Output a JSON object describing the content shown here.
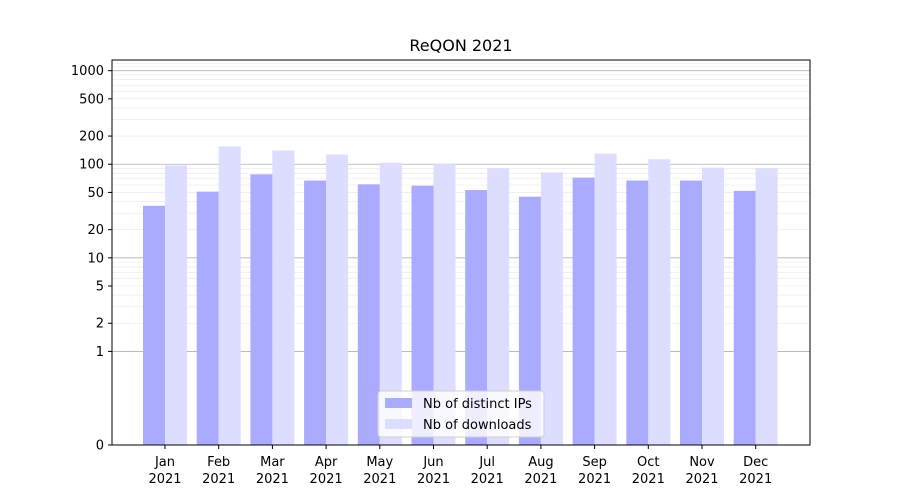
{
  "chart_data": {
    "type": "bar",
    "title": "ReQON 2021",
    "xlabel": "",
    "ylabel": "",
    "y_scale": "symlog",
    "ylim": [
      0,
      1300
    ],
    "grid": "horizontal",
    "legend_position": "bottom-center",
    "categories": [
      [
        "Jan",
        "2021"
      ],
      [
        "Feb",
        "2021"
      ],
      [
        "Mar",
        "2021"
      ],
      [
        "Apr",
        "2021"
      ],
      [
        "May",
        "2021"
      ],
      [
        "Jun",
        "2021"
      ],
      [
        "Jul",
        "2021"
      ],
      [
        "Aug",
        "2021"
      ],
      [
        "Sep",
        "2021"
      ],
      [
        "Oct",
        "2021"
      ],
      [
        "Nov",
        "2021"
      ],
      [
        "Dec",
        "2021"
      ]
    ],
    "y_ticks": [
      0,
      1,
      2,
      5,
      10,
      20,
      50,
      100,
      200,
      500,
      1000
    ],
    "series": [
      {
        "name": "Nb of distinct IPs",
        "color": "#aaaaff",
        "values": [
          36,
          51,
          78,
          67,
          61,
          59,
          53,
          45,
          72,
          67,
          67,
          52
        ]
      },
      {
        "name": "Nb of downloads",
        "color": "#ddddff",
        "values": [
          97,
          155,
          140,
          127,
          104,
          102,
          91,
          82,
          130,
          113,
          92,
          91
        ]
      }
    ]
  }
}
